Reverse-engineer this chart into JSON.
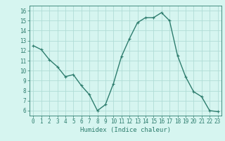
{
  "x": [
    0,
    1,
    2,
    3,
    4,
    5,
    6,
    7,
    8,
    9,
    10,
    11,
    12,
    13,
    14,
    15,
    16,
    17,
    18,
    19,
    20,
    21,
    22,
    23
  ],
  "y": [
    12.5,
    12.1,
    11.1,
    10.4,
    9.4,
    9.6,
    8.5,
    7.6,
    6.0,
    6.6,
    8.7,
    11.4,
    13.2,
    14.8,
    15.3,
    15.3,
    15.8,
    15.0,
    11.5,
    9.4,
    7.9,
    7.4,
    6.0,
    5.9
  ],
  "line_color": "#2e7d6e",
  "marker": "+",
  "marker_size": 3,
  "linewidth": 1.0,
  "bg_color": "#d6f5f0",
  "grid_color": "#b0ddd6",
  "xlabel": "Humidex (Indice chaleur)",
  "xlim": [
    -0.5,
    23.5
  ],
  "ylim": [
    5.5,
    16.5
  ],
  "yticks": [
    6,
    7,
    8,
    9,
    10,
    11,
    12,
    13,
    14,
    15,
    16
  ],
  "xticks": [
    0,
    1,
    2,
    3,
    4,
    5,
    6,
    7,
    8,
    9,
    10,
    11,
    12,
    13,
    14,
    15,
    16,
    17,
    18,
    19,
    20,
    21,
    22,
    23
  ]
}
